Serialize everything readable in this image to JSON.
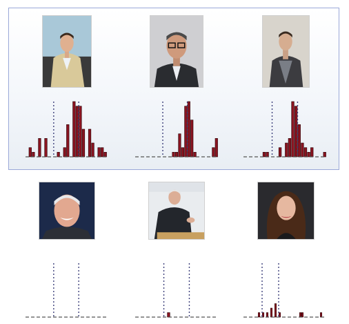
{
  "highlight": {
    "border_color": "#9aa8d8"
  },
  "bar_color": "#8a1421",
  "bar_edge_color": "#2a0508",
  "marker_color": "#3c3f7a",
  "baseline_color": "#555555",
  "photos": [
    {
      "id": "p1",
      "subject": "man-tan-suit-seated"
    },
    {
      "id": "p2",
      "subject": "man-glasses-dark-suit"
    },
    {
      "id": "p3",
      "subject": "man-dark-jacket-sweater"
    },
    {
      "id": "p4",
      "subject": "man-white-hair-laughing"
    },
    {
      "id": "p5",
      "subject": "man-white-hair-at-podium"
    },
    {
      "id": "p6",
      "subject": "woman-long-dark-hair"
    }
  ],
  "chart_data": [
    {
      "type": "bar",
      "markers": [
        9,
        17
      ],
      "values": [
        0,
        2,
        1,
        0,
        4,
        0,
        4,
        0,
        0,
        0,
        1,
        0,
        2,
        7,
        0,
        12,
        11,
        11,
        6,
        0,
        6,
        3,
        0,
        2,
        2,
        1
      ],
      "xlim": [
        0,
        26
      ],
      "ylim": [
        0,
        12
      ]
    },
    {
      "type": "bar",
      "markers": [
        9,
        17
      ],
      "values": [
        0,
        0,
        0,
        0,
        0,
        0,
        0,
        0,
        0,
        0,
        0,
        0,
        1,
        1,
        5,
        2,
        11,
        12,
        8,
        1,
        0,
        0,
        0,
        0,
        0,
        2,
        4
      ],
      "xlim": [
        0,
        27
      ],
      "ylim": [
        0,
        12
      ]
    },
    {
      "type": "bar",
      "markers": [
        9,
        17
      ],
      "values": [
        0,
        0,
        0,
        0,
        0,
        0,
        1,
        1,
        0,
        0,
        0,
        2,
        0,
        3,
        4,
        12,
        11,
        7,
        3,
        2,
        1,
        2,
        0,
        0,
        0,
        1
      ],
      "xlim": [
        0,
        26
      ],
      "ylim": [
        0,
        12
      ]
    },
    {
      "type": "bar",
      "markers": [
        9,
        17
      ],
      "values": [],
      "xlim": [
        0,
        26
      ],
      "ylim": [
        0,
        12
      ]
    },
    {
      "type": "bar",
      "markers": [
        9,
        17
      ],
      "values": [
        0,
        0,
        0,
        0,
        0,
        0,
        0,
        0,
        0,
        0,
        1,
        0,
        0,
        0,
        0,
        0,
        0,
        0,
        0,
        0,
        0,
        0,
        0,
        0,
        0,
        0
      ],
      "xlim": [
        0,
        26
      ],
      "ylim": [
        0,
        12
      ]
    },
    {
      "type": "bar",
      "markers": [
        9,
        17
      ],
      "values": [
        0,
        0,
        0,
        0,
        0,
        0,
        0,
        1,
        0,
        1,
        0,
        1,
        0,
        2,
        0,
        3,
        0,
        1,
        0,
        0,
        0,
        0,
        0,
        0,
        0,
        0,
        0,
        1,
        1,
        0,
        0,
        0,
        0,
        0,
        0,
        0,
        0,
        1,
        0,
        0
      ],
      "xlim": [
        0,
        40
      ],
      "ylim": [
        0,
        12
      ]
    }
  ]
}
